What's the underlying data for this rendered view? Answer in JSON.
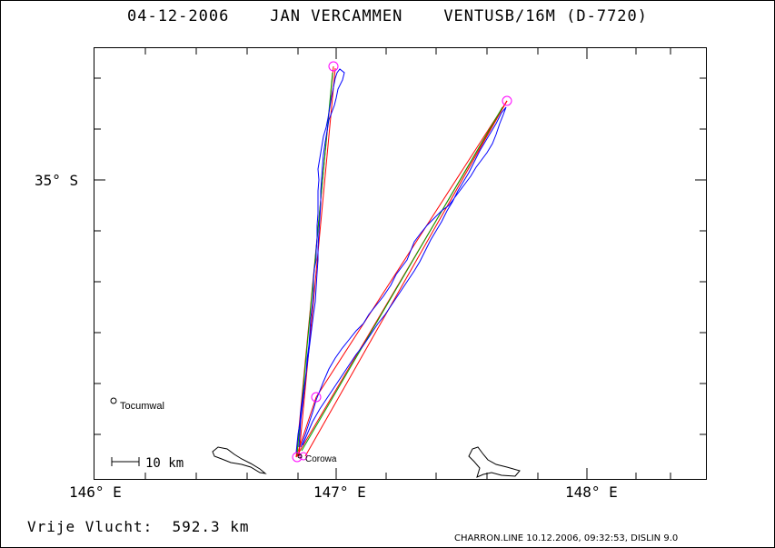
{
  "header": {
    "date": "04-12-2006",
    "pilot": "JAN VERCAMMEN",
    "glider": "VENTUSB/16M (D-7720)"
  },
  "axes": {
    "x_ticks": [
      "146° E",
      "147° E",
      "148° E"
    ],
    "y_ticks": [
      "35° S"
    ]
  },
  "places": [
    {
      "name": "Tocumwal"
    },
    {
      "name": "Corowa"
    }
  ],
  "scale_bar": {
    "label": "10 km"
  },
  "summary": {
    "label": "Vrije Vlucht:",
    "value": "592.3 km"
  },
  "footer": "CHARRON.LINE 10.12.2006, 09:32:53, DISLIN 9.0",
  "colors": {
    "track": "#0000ff",
    "task": "#ff0000",
    "leg": "#00aa00",
    "turnpoint": "#ff00ff",
    "frame": "#000000"
  }
}
